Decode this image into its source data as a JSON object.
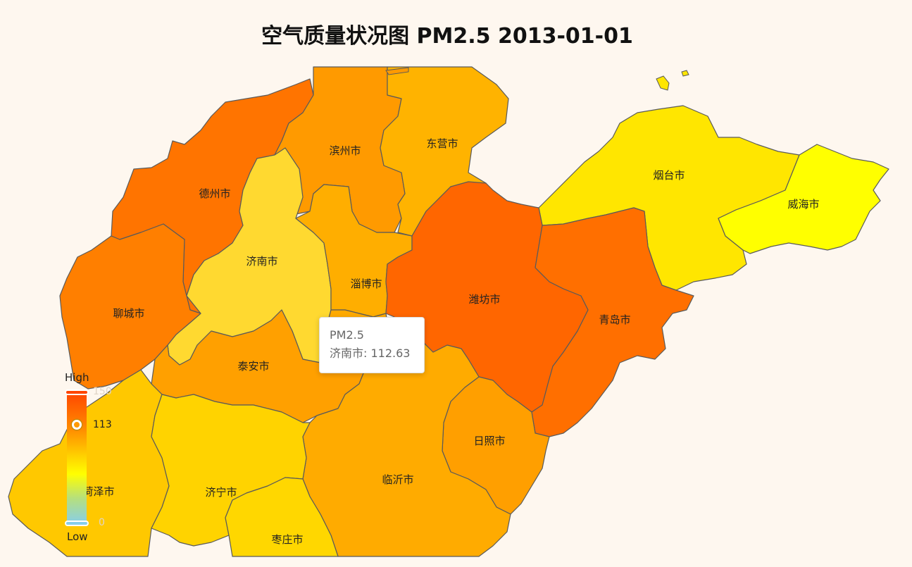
{
  "title": "空气质量状况图 PM2.5 2013-01-01",
  "map_data": {
    "type": "choropleth",
    "metric": "PM2.5",
    "date": "2013-01-01",
    "regions": [
      {
        "id": "dezhou",
        "name": "德州市",
        "value": 140,
        "color": "#ff7400"
      },
      {
        "id": "binzhou",
        "name": "滨州市",
        "value": 128,
        "color": "#ff9a00"
      },
      {
        "id": "dongying",
        "name": "东营市",
        "value": 118,
        "color": "#ffb300"
      },
      {
        "id": "yantai",
        "name": "烟台市",
        "value": 82,
        "color": "#ffe600"
      },
      {
        "id": "weihai",
        "name": "威海市",
        "value": 70,
        "color": "#ffff00"
      },
      {
        "id": "jinan",
        "name": "济南市",
        "value": 112.63,
        "color": "#ffd930"
      },
      {
        "id": "zibo",
        "name": "淄博市",
        "value": 120,
        "color": "#ffae00"
      },
      {
        "id": "weifang",
        "name": "潍坊市",
        "value": 148,
        "color": "#ff6600"
      },
      {
        "id": "qingdao",
        "name": "青岛市",
        "value": 142,
        "color": "#ff6f00"
      },
      {
        "id": "liaocheng",
        "name": "聊城市",
        "value": 136,
        "color": "#ff7f00"
      },
      {
        "id": "taian",
        "name": "泰安市",
        "value": 124,
        "color": "#ffa000"
      },
      {
        "id": "laiwu",
        "name": "",
        "value": 122,
        "color": "#ffaa00"
      },
      {
        "id": "rizhao",
        "name": "日照市",
        "value": 126,
        "color": "#ff9f00"
      },
      {
        "id": "linyi",
        "name": "临沂市",
        "value": 120,
        "color": "#ffab00"
      },
      {
        "id": "heze",
        "name": "菏泽市",
        "value": 108,
        "color": "#ffc800"
      },
      {
        "id": "jining",
        "name": "济宁市",
        "value": 100,
        "color": "#ffd300"
      },
      {
        "id": "zaozhuang",
        "name": "枣庄市",
        "value": 98,
        "color": "#ffd700"
      }
    ]
  },
  "tooltip": {
    "series": "PM2.5",
    "text": "济南市: 112.63"
  },
  "legend": {
    "high_label": "High",
    "low_label": "Low",
    "max": "150",
    "min": "0",
    "current": "113"
  }
}
